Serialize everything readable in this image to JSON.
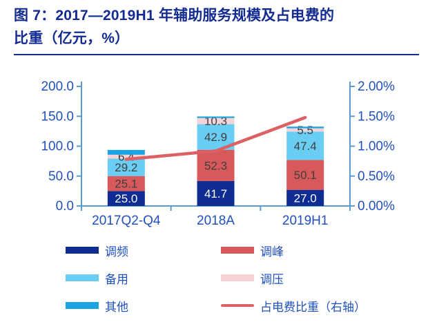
{
  "header": {
    "title_line1": "图 7：2017—2019H1 年辅助服务规模及占电费的",
    "title_line2": "比重（亿元，%）"
  },
  "colors": {
    "title": "#132B91",
    "axis_line": "#5B9BD5",
    "axis_tick_label": "#2050C0",
    "legend_text": "#2050C0",
    "data_label": "#404040",
    "data_label_on_dark": "#FFFFFF",
    "background": "#FFFFFF"
  },
  "chart_data": {
    "type": "bar",
    "variant": "stacked-column-with-right-axis-line",
    "title": "图 7：2017—2019H1 年辅助服务规模及占电费的比重（亿元，%）",
    "categories": [
      "2017Q2-Q4",
      "2018A",
      "2019H1"
    ],
    "series": [
      {
        "name": "调频",
        "color": "#0E2C92",
        "values": [
          25.0,
          41.7,
          27.0
        ],
        "labels": [
          "25.0",
          "41.7",
          "27.0"
        ],
        "show_labels": true,
        "label_color": "#FFFFFF"
      },
      {
        "name": "调峰",
        "color": "#D8595C",
        "values": [
          25.1,
          52.3,
          50.1
        ],
        "labels": [
          "25.1",
          "52.3",
          "50.1"
        ],
        "show_labels": true,
        "label_color": "#404040"
      },
      {
        "name": "备用",
        "color": "#69CDF4",
        "values": [
          29.2,
          42.9,
          47.4
        ],
        "labels": [
          "29.2",
          "42.9",
          "47.4"
        ],
        "show_labels": true,
        "label_color": "#404040"
      },
      {
        "name": "调压",
        "color": "#F5D3D7",
        "values": [
          6.4,
          10.3,
          5.5
        ],
        "labels": [
          "6.4",
          "10.3",
          "5.5"
        ],
        "show_labels": true,
        "label_color": "#404040"
      },
      {
        "name": "其他",
        "color": "#1BA3E4",
        "values": [
          8.0,
          2.5,
          2.7
        ],
        "labels": [
          "",
          "",
          ""
        ],
        "show_labels": false,
        "estimated": true
      }
    ],
    "line_series": {
      "name": "占电费比重（右轴）",
      "axis": "right",
      "color": "#DB6164",
      "values_percent": [
        0.78,
        0.92,
        1.48
      ],
      "estimated": true
    },
    "left_axis": {
      "min": 0,
      "max": 200,
      "tick_labels": [
        "0.0",
        "50.0",
        "100.0",
        "150.0",
        "200.0"
      ]
    },
    "right_axis": {
      "min": 0,
      "max": 2,
      "tick_labels": [
        "0.00%",
        "0.50%",
        "1.00%",
        "1.50%",
        "2.00%"
      ]
    },
    "grid": false,
    "legend_position": "bottom"
  },
  "legend": {
    "items": [
      {
        "label": "调频",
        "swatch": "bar",
        "series_index": 0
      },
      {
        "label": "调峰",
        "swatch": "bar",
        "series_index": 1
      },
      {
        "label": "备用",
        "swatch": "bar",
        "series_index": 2
      },
      {
        "label": "调压",
        "swatch": "bar",
        "series_index": 3
      },
      {
        "label": "其他",
        "swatch": "bar",
        "series_index": 4
      },
      {
        "label": "占电费比重（右轴）",
        "swatch": "line",
        "series_index": -1
      }
    ]
  }
}
